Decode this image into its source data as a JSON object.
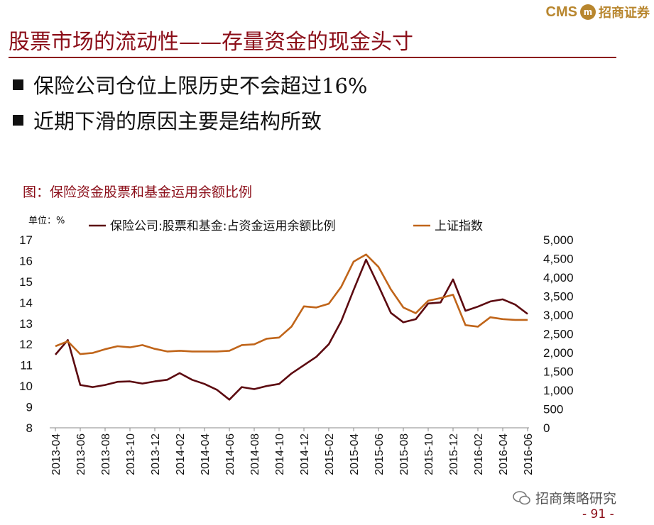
{
  "header": {
    "brand": "CMS",
    "brand_badge": "m",
    "brand_cn": "招商证券"
  },
  "slide": {
    "title": "股票市场的流动性——存量资金的现金头寸",
    "bullets": [
      "保险公司仓位上限历史不会超过16%",
      "近期下滑的原因主要是结构所致"
    ]
  },
  "figure": {
    "title": "图：保险资金股票和基金运用余额比例",
    "unit": "单位：%"
  },
  "chart_data": {
    "type": "line",
    "x_tick_labels": [
      "2013-04",
      "2013-06",
      "2013-08",
      "2013-10",
      "2013-12",
      "2014-02",
      "2014-04",
      "2014-06",
      "2014-08",
      "2014-10",
      "2014-12",
      "2015-02",
      "2015-04",
      "2015-06",
      "2015-08",
      "2015-10",
      "2015-12",
      "2016-02",
      "2016-04",
      "2016-06"
    ],
    "y_left": {
      "min": 8,
      "max": 17,
      "ticks": [
        "8",
        "9",
        "10",
        "11",
        "12",
        "13",
        "14",
        "15",
        "16",
        "17"
      ]
    },
    "y_right": {
      "min": 0,
      "max": 5000,
      "ticks": [
        "0",
        "500",
        "1,000",
        "1,500",
        "2,000",
        "2,500",
        "3,000",
        "3,500",
        "4,000",
        "4,500",
        "5,000"
      ]
    },
    "series": [
      {
        "name": "保险公司:股票和基金:占资金运用余额比例",
        "axis": "left",
        "color": "#5c0a10",
        "values": [
          11.5,
          12.2,
          10.05,
          9.95,
          10.05,
          10.2,
          10.22,
          10.12,
          10.22,
          10.3,
          10.62,
          10.3,
          10.1,
          9.82,
          9.35,
          9.95,
          9.85,
          10.0,
          10.1,
          10.6,
          11.0,
          11.4,
          12.0,
          13.1,
          14.6,
          16.05,
          14.8,
          13.5,
          13.05,
          13.2,
          13.95,
          14.0,
          15.1,
          13.6,
          13.8,
          14.05,
          14.15,
          13.9,
          13.45
        ]
      },
      {
        "name": "上证指数",
        "axis": "right",
        "color": "#c0651a",
        "values": [
          2170,
          2300,
          1960,
          1990,
          2090,
          2170,
          2140,
          2200,
          2100,
          2030,
          2050,
          2030,
          2030,
          2030,
          2050,
          2200,
          2220,
          2370,
          2400,
          2690,
          3230,
          3200,
          3300,
          3750,
          4420,
          4610,
          4280,
          3680,
          3200,
          3050,
          3380,
          3450,
          3540,
          2730,
          2690,
          2940,
          2890,
          2870,
          2870
        ]
      }
    ]
  },
  "footer": {
    "watermark": "招商策略研究",
    "page": "- 91 -"
  }
}
